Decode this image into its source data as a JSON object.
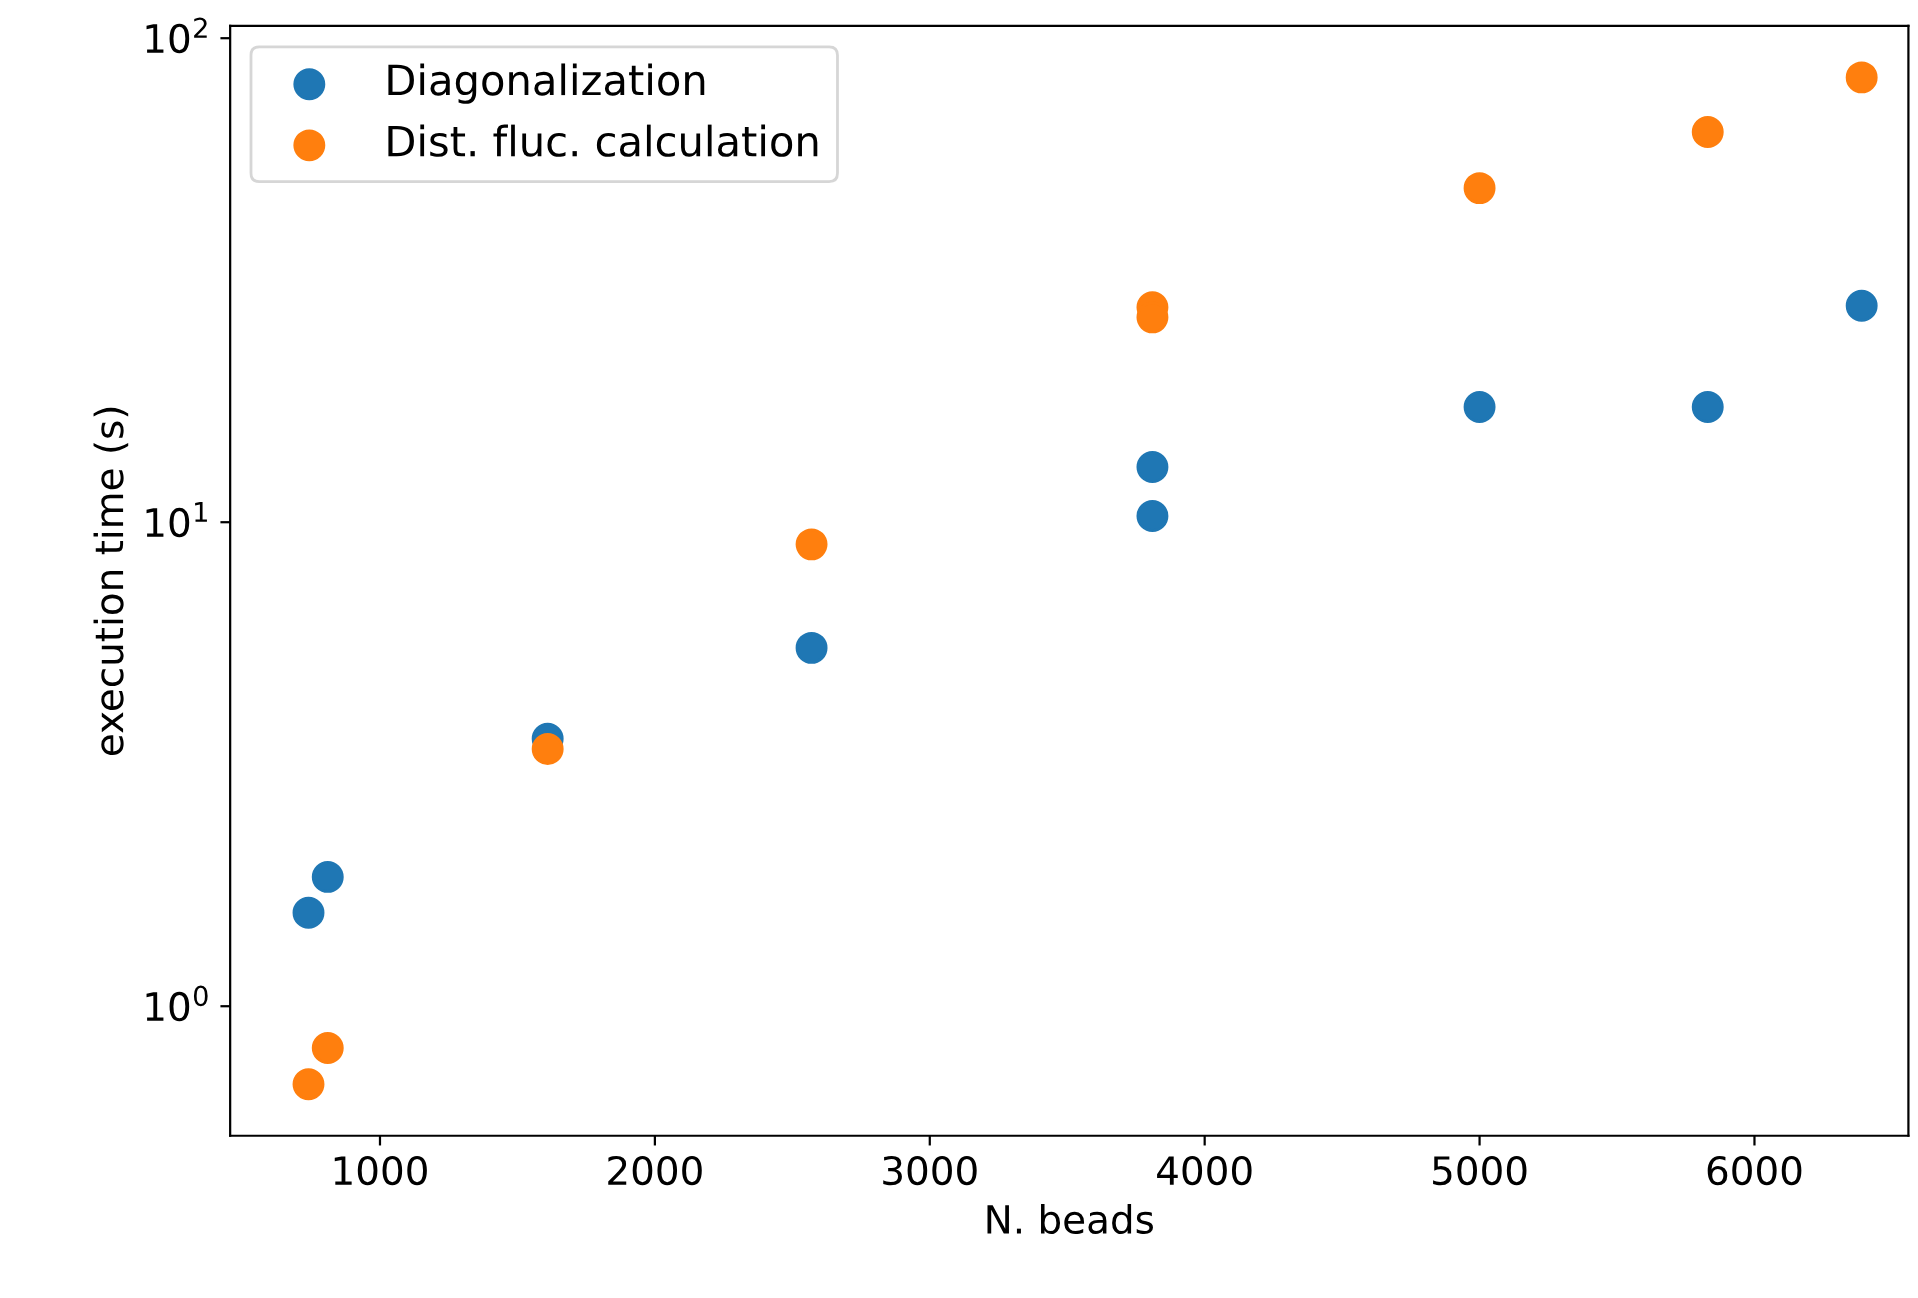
{
  "chart_data": {
    "type": "scatter",
    "xlabel": "N. beads",
    "ylabel": "execution time (s)",
    "log": "y",
    "x": [
      740,
      810,
      1610,
      2570,
      3810,
      3810,
      5000,
      5830,
      6390
    ],
    "series": [
      {
        "name": "Diagonalization",
        "color": "#1f77b4",
        "values": [
          1.56,
          1.85,
          3.57,
          5.5,
          13.0,
          10.3,
          17.3,
          17.3,
          28.0
        ]
      },
      {
        "name": "Dist. fluc. calculation",
        "color": "#ff7f0e",
        "values": [
          0.69,
          0.82,
          3.4,
          9.0,
          27.8,
          26.5,
          49,
          64,
          83
        ]
      }
    ],
    "xlim": [
      455,
      6560
    ],
    "xticks": [
      1000,
      2000,
      3000,
      4000,
      5000,
      6000
    ],
    "ylim": [
      0.54,
      106
    ],
    "yticks": [
      {
        "value": 1,
        "label": "10$^{0}$"
      },
      {
        "value": 10,
        "label": "10$^{1}$"
      },
      {
        "value": 100,
        "label": "10$^{2}$"
      }
    ],
    "legend": "upper left",
    "marker": "circle",
    "grid": false
  }
}
